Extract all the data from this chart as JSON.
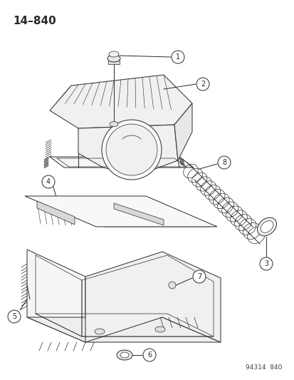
{
  "title_text": "14–840",
  "watermark": "94314  840",
  "bg_color": "#ffffff",
  "line_color": "#2a2a2a",
  "title_fontsize": 11,
  "watermark_fontsize": 6.5,
  "fig_width": 4.14,
  "fig_height": 5.33,
  "dpi": 100
}
